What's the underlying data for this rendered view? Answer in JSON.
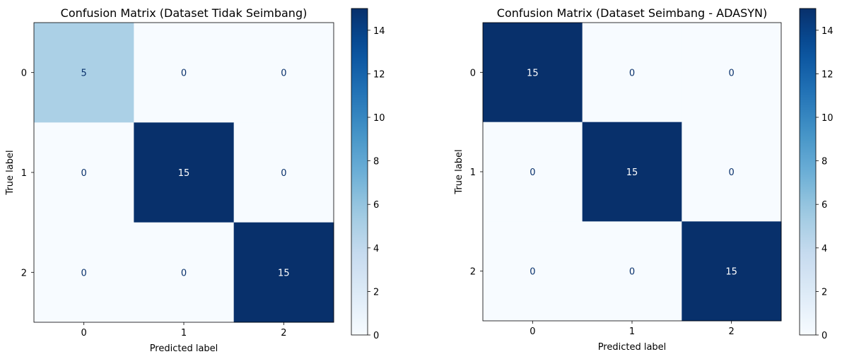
{
  "chart_data": [
    {
      "type": "heatmap",
      "title": "Confusion Matrix (Dataset Tidak Seimbang)",
      "xlabel": "Predicted label",
      "ylabel": "True label",
      "x_categories": [
        "0",
        "1",
        "2"
      ],
      "y_categories": [
        "0",
        "1",
        "2"
      ],
      "values": [
        [
          5,
          0,
          0
        ],
        [
          0,
          15,
          0
        ],
        [
          0,
          0,
          15
        ]
      ],
      "colormap": "Blues",
      "colorbar": {
        "range": [
          0,
          15
        ],
        "ticks": [
          0,
          2,
          4,
          6,
          8,
          10,
          12,
          14
        ]
      },
      "grid": false
    },
    {
      "type": "heatmap",
      "title": "Confusion Matrix (Dataset Seimbang - ADASYN)",
      "xlabel": "Predicted label",
      "ylabel": "True label",
      "x_categories": [
        "0",
        "1",
        "2"
      ],
      "y_categories": [
        "0",
        "1",
        "2"
      ],
      "values": [
        [
          15,
          0,
          0
        ],
        [
          0,
          15,
          0
        ],
        [
          0,
          0,
          15
        ]
      ],
      "colormap": "Blues",
      "colorbar": {
        "range": [
          0,
          15
        ],
        "ticks": [
          0,
          2,
          4,
          6,
          8,
          10,
          12,
          14
        ]
      },
      "grid": false
    }
  ],
  "colors": {
    "cmap_stops": [
      "#f7fbff",
      "#deebf7",
      "#c6dbef",
      "#9ecae1",
      "#6baed6",
      "#4292c6",
      "#2171b5",
      "#08519c",
      "#08306b"
    ],
    "text_dark_cell": "#ffffff",
    "text_light_cell": "#08306b",
    "axis": "#000000"
  }
}
